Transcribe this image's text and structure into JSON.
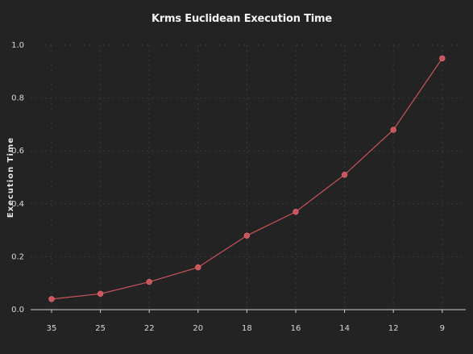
{
  "chart_data": {
    "type": "line",
    "title": "Krms Euclidean Execution Time",
    "xlabel": "",
    "ylabel": "Execution Time",
    "categories": [
      "35",
      "25",
      "22",
      "20",
      "18",
      "16",
      "14",
      "12",
      "9"
    ],
    "series": [
      {
        "values": [
          0.04,
          0.06,
          0.105,
          0.16,
          0.28,
          0.37,
          0.51,
          0.68,
          0.95
        ]
      }
    ],
    "ylim": [
      0.0,
      1.0
    ],
    "yticks": [
      "0.0",
      "0.2",
      "0.4",
      "0.6",
      "0.8",
      "1.0"
    ],
    "grid": true,
    "legend": "none",
    "colors": {
      "background": "#232323",
      "series": "#c9545b",
      "grid": "#3a3a3a",
      "axis": "#cfcfcf",
      "text": "#d8d8d8"
    }
  }
}
